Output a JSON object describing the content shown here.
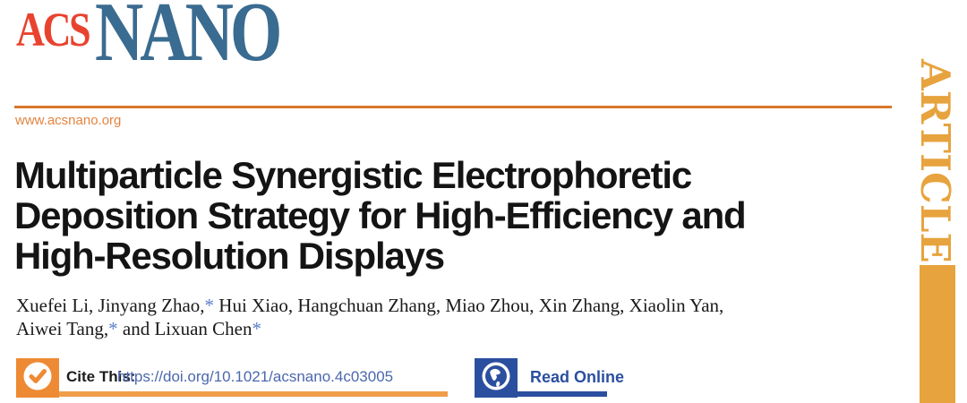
{
  "journal": {
    "logo_acs": "ACS",
    "logo_nano": "NANO",
    "website": "www.acsnano.org",
    "logo_acs_color": "#E8432F",
    "logo_nano_color": "#3A6B90",
    "rule_color": "#D8772B"
  },
  "banner": {
    "label": "ARTICLE",
    "color": "#E7A33D"
  },
  "article": {
    "title_lines": [
      "Multiparticle Synergistic Electrophoretic",
      "Deposition Strategy for High-Efficiency and",
      "High-Resolution Displays"
    ],
    "author_segments": [
      {
        "t": "Xuefei Li, Jinyang Zhao,"
      },
      {
        "t": "*",
        "star": true
      },
      {
        "t": " Hui Xiao, Hangchuan Zhang, Miao Zhou, Xin Zhang, Xiaolin Yan,"
      },
      {
        "br": true
      },
      {
        "t": "Aiwei Tang,"
      },
      {
        "t": "*",
        "star": true
      },
      {
        "t": " and Lixuan Chen"
      },
      {
        "t": "*",
        "star": true
      }
    ],
    "asterisk_color": "#5B7FC7"
  },
  "cite": {
    "label": "Cite This:",
    "doi": "https://doi.org/10.1021/acsnano.4c03005",
    "badge_color": "#EE8A33",
    "link_color": "#4B67AE"
  },
  "read_online": {
    "label": "Read Online",
    "badge_color": "#2B4F9F"
  }
}
